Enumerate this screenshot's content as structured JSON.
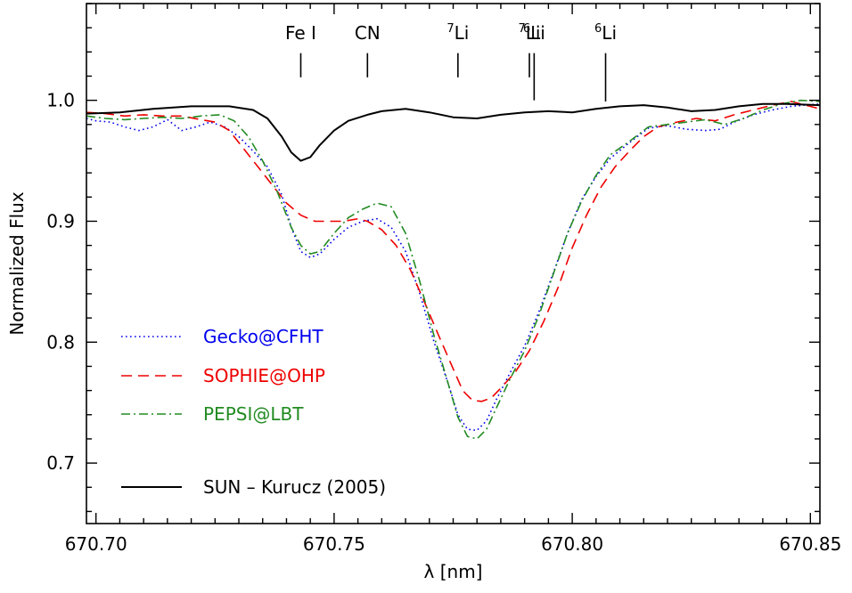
{
  "chart_data": {
    "type": "line",
    "xlabel": "λ [nm]",
    "ylabel": "Normalized Flux",
    "xlim": [
      670.698,
      670.852
    ],
    "ylim": [
      0.65,
      1.08
    ],
    "x_ticks": [
      670.7,
      670.75,
      670.8,
      670.85
    ],
    "x_tick_labels": [
      "670.70",
      "670.75",
      "670.80",
      "670.85"
    ],
    "y_ticks": [
      0.7,
      0.8,
      0.9,
      1.0
    ],
    "y_tick_labels": [
      "0.7",
      "0.8",
      "0.9",
      "1.0"
    ],
    "grid": false,
    "legend_position": "lower-left",
    "annotations": [
      {
        "text": "Fe I",
        "sup": "",
        "x": 670.743,
        "line_top": 1.039,
        "line_bottom": 1.019
      },
      {
        "text": "CN",
        "sup": "",
        "x": 670.757,
        "line_top": 1.039,
        "line_bottom": 1.019
      },
      {
        "text": "Li",
        "sup": "7",
        "x": 670.776,
        "line_top": 1.039,
        "line_bottom": 1.019
      },
      {
        "text": "Li",
        "sup": "7",
        "x": 670.791,
        "line_top": 1.039,
        "line_bottom": 1.019
      },
      {
        "text": "Li",
        "sup": "6",
        "x": 670.792,
        "line_top": 1.039,
        "line_bottom": 1.0
      },
      {
        "text": "Li",
        "sup": "6",
        "x": 670.807,
        "line_top": 1.039,
        "line_bottom": 0.999
      }
    ],
    "series": [
      {
        "name": "Gecko@CFHT",
        "color": "#0000ee",
        "dash": "dotted",
        "points": [
          [
            670.698,
            0.985
          ],
          [
            670.7,
            0.983
          ],
          [
            670.703,
            0.982
          ],
          [
            670.706,
            0.978
          ],
          [
            670.709,
            0.975
          ],
          [
            670.712,
            0.978
          ],
          [
            670.715,
            0.984
          ],
          [
            670.718,
            0.975
          ],
          [
            670.721,
            0.978
          ],
          [
            670.724,
            0.982
          ],
          [
            670.727,
            0.978
          ],
          [
            670.73,
            0.97
          ],
          [
            670.733,
            0.958
          ],
          [
            670.736,
            0.945
          ],
          [
            670.739,
            0.922
          ],
          [
            670.741,
            0.895
          ],
          [
            670.743,
            0.875
          ],
          [
            670.745,
            0.87
          ],
          [
            670.747,
            0.873
          ],
          [
            670.75,
            0.885
          ],
          [
            670.753,
            0.895
          ],
          [
            670.756,
            0.9
          ],
          [
            670.759,
            0.902
          ],
          [
            670.762,
            0.895
          ],
          [
            670.765,
            0.875
          ],
          [
            670.768,
            0.84
          ],
          [
            670.771,
            0.8
          ],
          [
            670.774,
            0.765
          ],
          [
            670.776,
            0.74
          ],
          [
            670.778,
            0.728
          ],
          [
            670.78,
            0.727
          ],
          [
            670.782,
            0.735
          ],
          [
            670.784,
            0.752
          ],
          [
            670.787,
            0.775
          ],
          [
            670.79,
            0.797
          ],
          [
            670.793,
            0.825
          ],
          [
            670.796,
            0.857
          ],
          [
            670.799,
            0.89
          ],
          [
            670.802,
            0.918
          ],
          [
            670.805,
            0.937
          ],
          [
            670.808,
            0.952
          ],
          [
            670.812,
            0.965
          ],
          [
            670.816,
            0.977
          ],
          [
            670.82,
            0.979
          ],
          [
            670.824,
            0.976
          ],
          [
            670.828,
            0.975
          ],
          [
            670.831,
            0.976
          ],
          [
            670.834,
            0.982
          ],
          [
            670.838,
            0.988
          ],
          [
            670.842,
            0.992
          ],
          [
            670.846,
            0.995
          ],
          [
            670.852,
            0.997
          ]
        ]
      },
      {
        "name": "SOPHIE@OHP",
        "color": "#ee0000",
        "dash": "dashed",
        "points": [
          [
            670.698,
            0.99
          ],
          [
            670.702,
            0.989
          ],
          [
            670.706,
            0.987
          ],
          [
            670.71,
            0.988
          ],
          [
            670.714,
            0.987
          ],
          [
            670.718,
            0.987
          ],
          [
            670.722,
            0.984
          ],
          [
            670.725,
            0.982
          ],
          [
            670.728,
            0.975
          ],
          [
            670.731,
            0.96
          ],
          [
            670.734,
            0.945
          ],
          [
            670.737,
            0.93
          ],
          [
            670.74,
            0.915
          ],
          [
            670.743,
            0.905
          ],
          [
            670.746,
            0.9
          ],
          [
            670.749,
            0.9
          ],
          [
            670.752,
            0.9
          ],
          [
            670.755,
            0.902
          ],
          [
            670.757,
            0.9
          ],
          [
            670.76,
            0.893
          ],
          [
            670.763,
            0.88
          ],
          [
            670.766,
            0.86
          ],
          [
            670.769,
            0.833
          ],
          [
            670.772,
            0.805
          ],
          [
            670.775,
            0.778
          ],
          [
            670.777,
            0.76
          ],
          [
            670.779,
            0.752
          ],
          [
            670.781,
            0.751
          ],
          [
            670.783,
            0.754
          ],
          [
            670.785,
            0.762
          ],
          [
            670.788,
            0.775
          ],
          [
            670.791,
            0.793
          ],
          [
            670.794,
            0.817
          ],
          [
            670.797,
            0.845
          ],
          [
            670.8,
            0.878
          ],
          [
            670.803,
            0.905
          ],
          [
            670.806,
            0.928
          ],
          [
            670.809,
            0.945
          ],
          [
            670.812,
            0.958
          ],
          [
            670.815,
            0.97
          ],
          [
            670.818,
            0.978
          ],
          [
            670.822,
            0.982
          ],
          [
            670.826,
            0.985
          ],
          [
            670.83,
            0.983
          ],
          [
            670.834,
            0.988
          ],
          [
            670.838,
            0.992
          ],
          [
            670.842,
            0.996
          ],
          [
            670.846,
            0.999
          ],
          [
            670.852,
            0.993
          ]
        ]
      },
      {
        "name": "PEPSI@LBT",
        "color": "#228b22",
        "dash": "dashdot",
        "points": [
          [
            670.698,
            0.987
          ],
          [
            670.702,
            0.985
          ],
          [
            670.706,
            0.984
          ],
          [
            670.71,
            0.985
          ],
          [
            670.714,
            0.986
          ],
          [
            670.718,
            0.985
          ],
          [
            670.722,
            0.987
          ],
          [
            670.726,
            0.988
          ],
          [
            670.729,
            0.983
          ],
          [
            670.732,
            0.97
          ],
          [
            670.735,
            0.95
          ],
          [
            670.738,
            0.925
          ],
          [
            670.741,
            0.895
          ],
          [
            670.743,
            0.88
          ],
          [
            670.745,
            0.873
          ],
          [
            670.747,
            0.875
          ],
          [
            670.75,
            0.89
          ],
          [
            670.753,
            0.903
          ],
          [
            670.756,
            0.91
          ],
          [
            670.759,
            0.915
          ],
          [
            670.762,
            0.912
          ],
          [
            670.765,
            0.89
          ],
          [
            670.768,
            0.85
          ],
          [
            670.771,
            0.805
          ],
          [
            670.774,
            0.765
          ],
          [
            670.776,
            0.738
          ],
          [
            670.778,
            0.722
          ],
          [
            670.78,
            0.72
          ],
          [
            670.782,
            0.728
          ],
          [
            670.784,
            0.745
          ],
          [
            670.787,
            0.77
          ],
          [
            670.79,
            0.793
          ],
          [
            670.793,
            0.822
          ],
          [
            670.796,
            0.856
          ],
          [
            670.799,
            0.89
          ],
          [
            670.802,
            0.917
          ],
          [
            670.805,
            0.938
          ],
          [
            670.808,
            0.955
          ],
          [
            670.812,
            0.966
          ],
          [
            670.816,
            0.978
          ],
          [
            670.82,
            0.98
          ],
          [
            670.824,
            0.982
          ],
          [
            670.828,
            0.984
          ],
          [
            670.832,
            0.98
          ],
          [
            670.836,
            0.985
          ],
          [
            670.84,
            0.992
          ],
          [
            670.844,
            0.997
          ],
          [
            670.848,
            1.0
          ],
          [
            670.852,
            0.999
          ]
        ]
      },
      {
        "name": "SUN – Kurucz (2005)",
        "color": "#000000",
        "dash": "solid",
        "points": [
          [
            670.698,
            0.989
          ],
          [
            670.705,
            0.99
          ],
          [
            670.712,
            0.993
          ],
          [
            670.72,
            0.995
          ],
          [
            670.728,
            0.995
          ],
          [
            670.733,
            0.992
          ],
          [
            670.736,
            0.985
          ],
          [
            670.739,
            0.97
          ],
          [
            670.741,
            0.957
          ],
          [
            670.743,
            0.95
          ],
          [
            670.745,
            0.953
          ],
          [
            670.747,
            0.963
          ],
          [
            670.75,
            0.975
          ],
          [
            670.753,
            0.983
          ],
          [
            670.757,
            0.988
          ],
          [
            670.76,
            0.991
          ],
          [
            670.765,
            0.993
          ],
          [
            670.77,
            0.99
          ],
          [
            670.775,
            0.986
          ],
          [
            670.78,
            0.985
          ],
          [
            670.785,
            0.988
          ],
          [
            670.79,
            0.99
          ],
          [
            670.795,
            0.991
          ],
          [
            670.8,
            0.99
          ],
          [
            670.805,
            0.993
          ],
          [
            670.81,
            0.995
          ],
          [
            670.815,
            0.996
          ],
          [
            670.82,
            0.994
          ],
          [
            670.825,
            0.991
          ],
          [
            670.83,
            0.992
          ],
          [
            670.835,
            0.995
          ],
          [
            670.84,
            0.997
          ],
          [
            670.845,
            0.997
          ],
          [
            670.852,
            0.996
          ]
        ]
      }
    ]
  }
}
